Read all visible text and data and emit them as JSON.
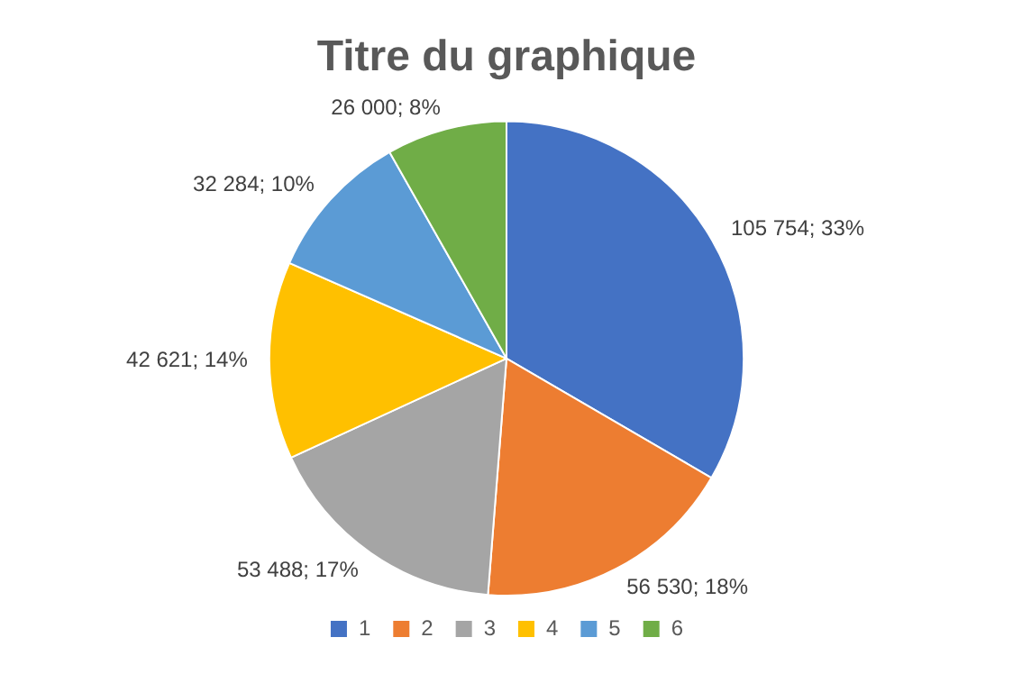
{
  "chart_data": {
    "type": "pie",
    "title": "Titre du graphique",
    "categories": [
      "1",
      "2",
      "3",
      "4",
      "5",
      "6"
    ],
    "values": [
      105754,
      56530,
      53488,
      42621,
      32284,
      26000
    ],
    "colors": [
      "#4472c4",
      "#ed7d31",
      "#a5a5a5",
      "#ffc000",
      "#5b9bd5",
      "#70ad47"
    ],
    "value_labels": [
      "105 754; 33%",
      "56 530; 18%",
      "53 488; 17%",
      "42 621; 14%",
      "32 284; 10%",
      "26 000; 8%"
    ],
    "legend": "bottom"
  }
}
